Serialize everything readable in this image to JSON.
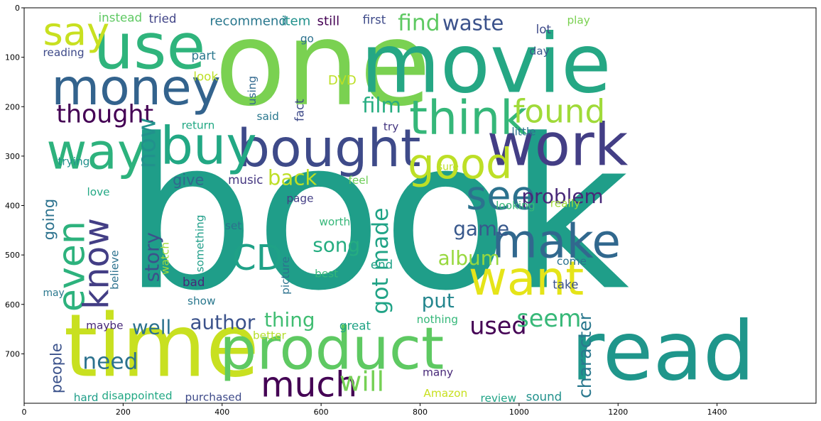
{
  "chart_data": {
    "type": "wordcloud",
    "xlim": [
      0,
      1600
    ],
    "ylim": [
      800,
      0
    ],
    "xticks": [
      "0",
      "200",
      "400",
      "600",
      "800",
      "1000",
      "1200",
      "1400"
    ],
    "yticks": [
      "0",
      "100",
      "200",
      "300",
      "400",
      "500",
      "600",
      "700"
    ],
    "colormap": "viridis",
    "words": [
      {
        "text": "book",
        "x": 200,
        "y": 565,
        "size": 420,
        "color": "#1f9e89"
      },
      {
        "text": "one",
        "x": 385,
        "y": 195,
        "size": 235,
        "color": "#7ad151"
      },
      {
        "text": "movie",
        "x": 680,
        "y": 170,
        "size": 165,
        "color": "#25a784"
      },
      {
        "text": "time",
        "x": 80,
        "y": 745,
        "size": 175,
        "color": "#c8e020"
      },
      {
        "text": "read",
        "x": 1105,
        "y": 752,
        "size": 165,
        "color": "#1f968b"
      },
      {
        "text": "product",
        "x": 395,
        "y": 730,
        "size": 118,
        "color": "#5ec962"
      },
      {
        "text": "use",
        "x": 140,
        "y": 122,
        "size": 128,
        "color": "#2fb47c"
      },
      {
        "text": "work",
        "x": 935,
        "y": 318,
        "size": 118,
        "color": "#433e85"
      },
      {
        "text": "bought",
        "x": 430,
        "y": 320,
        "size": 105,
        "color": "#3e4a89"
      },
      {
        "text": "buy",
        "x": 275,
        "y": 315,
        "size": 105,
        "color": "#22a884"
      },
      {
        "text": "money",
        "x": 55,
        "y": 195,
        "size": 100,
        "color": "#33638d"
      },
      {
        "text": "way",
        "x": 45,
        "y": 325,
        "size": 100,
        "color": "#2db27d"
      },
      {
        "text": "think",
        "x": 778,
        "y": 255,
        "size": 95,
        "color": "#35b779"
      },
      {
        "text": "make",
        "x": 945,
        "y": 505,
        "size": 95,
        "color": "#31688e"
      },
      {
        "text": "want",
        "x": 898,
        "y": 580,
        "size": 95,
        "color": "#e5e419"
      },
      {
        "text": "good",
        "x": 775,
        "y": 345,
        "size": 85,
        "color": "#bddf26"
      },
      {
        "text": "see",
        "x": 893,
        "y": 407,
        "size": 80,
        "color": "#2c728e"
      },
      {
        "text": "say",
        "x": 38,
        "y": 75,
        "size": 78,
        "color": "#c8e020"
      },
      {
        "text": "found",
        "x": 988,
        "y": 232,
        "size": 65,
        "color": "#a0da39"
      },
      {
        "text": "CD",
        "x": 420,
        "y": 530,
        "size": 70,
        "color": "#1fa187"
      },
      {
        "text": "much",
        "x": 478,
        "y": 786,
        "size": 70,
        "color": "#440154"
      },
      {
        "text": "find",
        "x": 755,
        "y": 45,
        "size": 45,
        "color": "#5ec962"
      },
      {
        "text": "waste",
        "x": 845,
        "y": 45,
        "size": 42,
        "color": "#3b528b"
      },
      {
        "text": "thought",
        "x": 65,
        "y": 232,
        "size": 50,
        "color": "#440154"
      },
      {
        "text": "film",
        "x": 683,
        "y": 212,
        "size": 42,
        "color": "#26ad81"
      },
      {
        "text": "problem",
        "x": 1005,
        "y": 395,
        "size": 40,
        "color": "#482878"
      },
      {
        "text": "game",
        "x": 867,
        "y": 460,
        "size": 40,
        "color": "#38588c"
      },
      {
        "text": "album",
        "x": 836,
        "y": 520,
        "size": 40,
        "color": "#98d83e"
      },
      {
        "text": "used",
        "x": 900,
        "y": 660,
        "size": 48,
        "color": "#440154"
      },
      {
        "text": "seem",
        "x": 995,
        "y": 645,
        "size": 48,
        "color": "#37b878"
      },
      {
        "text": "author",
        "x": 335,
        "y": 650,
        "size": 40,
        "color": "#3b528b"
      },
      {
        "text": "well",
        "x": 218,
        "y": 660,
        "size": 40,
        "color": "#2c728e"
      },
      {
        "text": "thing",
        "x": 485,
        "y": 645,
        "size": 40,
        "color": "#40bd72"
      },
      {
        "text": "song",
        "x": 583,
        "y": 493,
        "size": 40,
        "color": "#26ad81"
      },
      {
        "text": "back",
        "x": 492,
        "y": 358,
        "size": 42,
        "color": "#bddf26"
      },
      {
        "text": "need",
        "x": 118,
        "y": 730,
        "size": 45,
        "color": "#2c728e"
      },
      {
        "text": "will",
        "x": 637,
        "y": 775,
        "size": 55,
        "color": "#75d054"
      },
      {
        "text": "put",
        "x": 803,
        "y": 606,
        "size": 40,
        "color": "#24868e"
      },
      {
        "text": "give",
        "x": 300,
        "y": 358,
        "size": 30,
        "color": "#31688e"
      },
      {
        "text": "music",
        "x": 412,
        "y": 356,
        "size": 24,
        "color": "#453781"
      },
      {
        "text": "page",
        "x": 530,
        "y": 393,
        "size": 22,
        "color": "#433e85"
      },
      {
        "text": "recommend",
        "x": 375,
        "y": 35,
        "size": 26,
        "color": "#2a788e"
      },
      {
        "text": "item",
        "x": 520,
        "y": 35,
        "size": 26,
        "color": "#21918c"
      },
      {
        "text": "still",
        "x": 592,
        "y": 35,
        "size": 26,
        "color": "#440154"
      },
      {
        "text": "first",
        "x": 684,
        "y": 32,
        "size": 24,
        "color": "#3e4a89"
      },
      {
        "text": "play",
        "x": 1097,
        "y": 32,
        "size": 22,
        "color": "#7ad151"
      },
      {
        "text": "instead",
        "x": 150,
        "y": 28,
        "size": 24,
        "color": "#5ec962"
      },
      {
        "text": "tried",
        "x": 252,
        "y": 30,
        "size": 24,
        "color": "#414487"
      },
      {
        "text": "reading",
        "x": 38,
        "y": 98,
        "size": 22,
        "color": "#3e4a89"
      },
      {
        "text": "go",
        "x": 558,
        "y": 70,
        "size": 22,
        "color": "#2c728e"
      },
      {
        "text": "lot",
        "x": 1034,
        "y": 52,
        "size": 24,
        "color": "#3e4a89"
      },
      {
        "text": "day",
        "x": 1021,
        "y": 95,
        "size": 22,
        "color": "#39568c"
      },
      {
        "text": "part",
        "x": 338,
        "y": 105,
        "size": 24,
        "color": "#2a788e"
      },
      {
        "text": "look",
        "x": 342,
        "y": 147,
        "size": 24,
        "color": "#bddf26"
      },
      {
        "text": "DVD",
        "x": 614,
        "y": 155,
        "size": 26,
        "color": "#bddf26"
      },
      {
        "text": "said",
        "x": 470,
        "y": 227,
        "size": 22,
        "color": "#2a788e"
      },
      {
        "text": "return",
        "x": 318,
        "y": 245,
        "size": 22,
        "color": "#22a884"
      },
      {
        "text": "try",
        "x": 726,
        "y": 248,
        "size": 22,
        "color": "#453781"
      },
      {
        "text": "little",
        "x": 985,
        "y": 258,
        "size": 22,
        "color": "#2c728e"
      },
      {
        "text": "trying",
        "x": 68,
        "y": 318,
        "size": 22,
        "color": "#21918c"
      },
      {
        "text": "love",
        "x": 127,
        "y": 380,
        "size": 22,
        "color": "#22a884"
      },
      {
        "text": "feel",
        "x": 655,
        "y": 356,
        "size": 22,
        "color": "#6ece58"
      },
      {
        "text": "sure",
        "x": 835,
        "y": 328,
        "size": 20,
        "color": "#bddf26"
      },
      {
        "text": "looking",
        "x": 953,
        "y": 407,
        "size": 22,
        "color": "#37b878"
      },
      {
        "text": "really",
        "x": 1063,
        "y": 403,
        "size": 22,
        "color": "#a0da39"
      },
      {
        "text": "worth",
        "x": 596,
        "y": 440,
        "size": 22,
        "color": "#35b779"
      },
      {
        "text": "set",
        "x": 406,
        "y": 448,
        "size": 22,
        "color": "#2c728e"
      },
      {
        "text": "end",
        "x": 700,
        "y": 528,
        "size": 24,
        "color": "#1fa187"
      },
      {
        "text": "best",
        "x": 587,
        "y": 545,
        "size": 22,
        "color": "#35b779"
      },
      {
        "text": "come",
        "x": 1076,
        "y": 520,
        "size": 22,
        "color": "#2c728e"
      },
      {
        "text": "take",
        "x": 1068,
        "y": 568,
        "size": 24,
        "color": "#3b528b"
      },
      {
        "text": "bad",
        "x": 320,
        "y": 563,
        "size": 24,
        "color": "#482878"
      },
      {
        "text": "show",
        "x": 330,
        "y": 600,
        "size": 22,
        "color": "#2a788e"
      },
      {
        "text": "may",
        "x": 38,
        "y": 583,
        "size": 20,
        "color": "#2a788e"
      },
      {
        "text": "maybe",
        "x": 125,
        "y": 650,
        "size": 22,
        "color": "#482878"
      },
      {
        "text": "great",
        "x": 637,
        "y": 651,
        "size": 24,
        "color": "#20a386"
      },
      {
        "text": "nothing",
        "x": 793,
        "y": 638,
        "size": 22,
        "color": "#35b779"
      },
      {
        "text": "better",
        "x": 462,
        "y": 670,
        "size": 22,
        "color": "#b5de2b"
      },
      {
        "text": "many",
        "x": 805,
        "y": 745,
        "size": 22,
        "color": "#482878"
      },
      {
        "text": "hard",
        "x": 100,
        "y": 796,
        "size": 22,
        "color": "#1f9e89"
      },
      {
        "text": "disappointed",
        "x": 157,
        "y": 792,
        "size": 22,
        "color": "#22a884"
      },
      {
        "text": "purchased",
        "x": 325,
        "y": 795,
        "size": 22,
        "color": "#3e4a89"
      },
      {
        "text": "Amazon",
        "x": 807,
        "y": 787,
        "size": 22,
        "color": "#c8e020"
      },
      {
        "text": "review",
        "x": 922,
        "y": 797,
        "size": 22,
        "color": "#20a386"
      },
      {
        "text": "sound",
        "x": 1014,
        "y": 795,
        "size": 24,
        "color": "#21918c"
      }
    ],
    "vertical_words": [
      {
        "text": "even",
        "x": 121,
        "y": 615,
        "size": 75,
        "color": "#2db27d"
      },
      {
        "text": "know",
        "x": 170,
        "y": 610,
        "size": 70,
        "color": "#433e85"
      },
      {
        "text": "now",
        "x": 265,
        "y": 325,
        "size": 50,
        "color": "#21918c"
      },
      {
        "text": "going",
        "x": 60,
        "y": 470,
        "size": 30,
        "color": "#2c728e"
      },
      {
        "text": "story",
        "x": 272,
        "y": 555,
        "size": 40,
        "color": "#3b528b"
      },
      {
        "text": "watch",
        "x": 292,
        "y": 540,
        "size": 22,
        "color": "#a0da39"
      },
      {
        "text": "believe",
        "x": 190,
        "y": 570,
        "size": 22,
        "color": "#2c728e"
      },
      {
        "text": "something",
        "x": 362,
        "y": 535,
        "size": 22,
        "color": "#1f9e89"
      },
      {
        "text": "picture",
        "x": 535,
        "y": 580,
        "size": 22,
        "color": "#2c728e"
      },
      {
        "text": "using",
        "x": 468,
        "y": 197,
        "size": 22,
        "color": "#31688e"
      },
      {
        "text": "fact",
        "x": 565,
        "y": 230,
        "size": 24,
        "color": "#3e4a89"
      },
      {
        "text": "got made",
        "x": 735,
        "y": 620,
        "size": 45,
        "color": "#20a386"
      },
      {
        "text": "people",
        "x": 75,
        "y": 780,
        "size": 30,
        "color": "#3b528b"
      },
      {
        "text": "character",
        "x": 1145,
        "y": 790,
        "size": 36,
        "color": "#2a788e"
      }
    ]
  }
}
